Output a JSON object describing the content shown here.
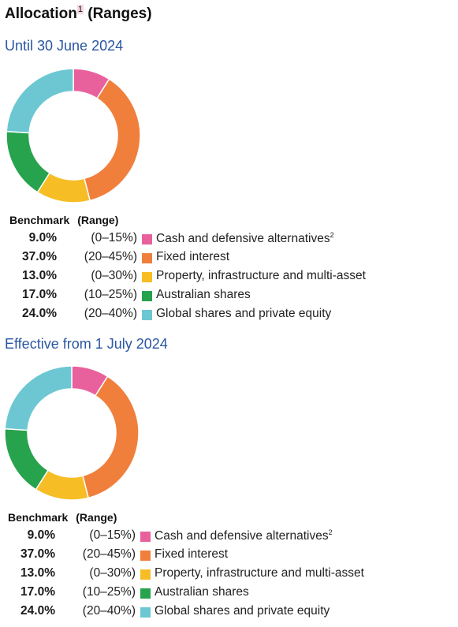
{
  "title": "Allocation",
  "title_sup": "1",
  "benchmark_header": "Benchmark",
  "range_header": "(Range)",
  "colors": {
    "cash": "#e8619d",
    "fixed": "#f07f3c",
    "property": "#f6bd25",
    "aus": "#27a24d",
    "global": "#6cc7d3"
  },
  "chart_data": [
    {
      "type": "pie",
      "title": "Until 30 June 2024",
      "categories": [
        "Cash and defensive alternatives",
        "Fixed interest",
        "Property, infrastructure and multi-asset",
        "Australian shares",
        "Global shares and private equity"
      ],
      "values": [
        9.0,
        37.0,
        13.0,
        17.0,
        24.0
      ],
      "benchmark_labels": [
        "9.0%",
        "37.0%",
        "13.0%",
        "17.0%",
        "24.0%"
      ],
      "ranges": [
        "(0–15%)",
        "(20–45%)",
        "(0–30%)",
        "(10–25%)",
        "(20–40%)"
      ],
      "label_sups": [
        "2",
        "",
        "",
        "",
        ""
      ]
    },
    {
      "type": "pie",
      "title": "Effective from 1 July 2024",
      "categories": [
        "Cash and defensive alternatives",
        "Fixed interest",
        "Property, infrastructure and multi-asset",
        "Australian shares",
        "Global shares and private equity"
      ],
      "values": [
        9.0,
        37.0,
        13.0,
        17.0,
        24.0
      ],
      "benchmark_labels": [
        "9.0%",
        "37.0%",
        "13.0%",
        "17.0%",
        "24.0%"
      ],
      "ranges": [
        "(0–15%)",
        "(20–45%)",
        "(0–30%)",
        "(10–25%)",
        "(20–40%)"
      ],
      "label_sups": [
        "2",
        "",
        "",
        "",
        ""
      ]
    }
  ]
}
